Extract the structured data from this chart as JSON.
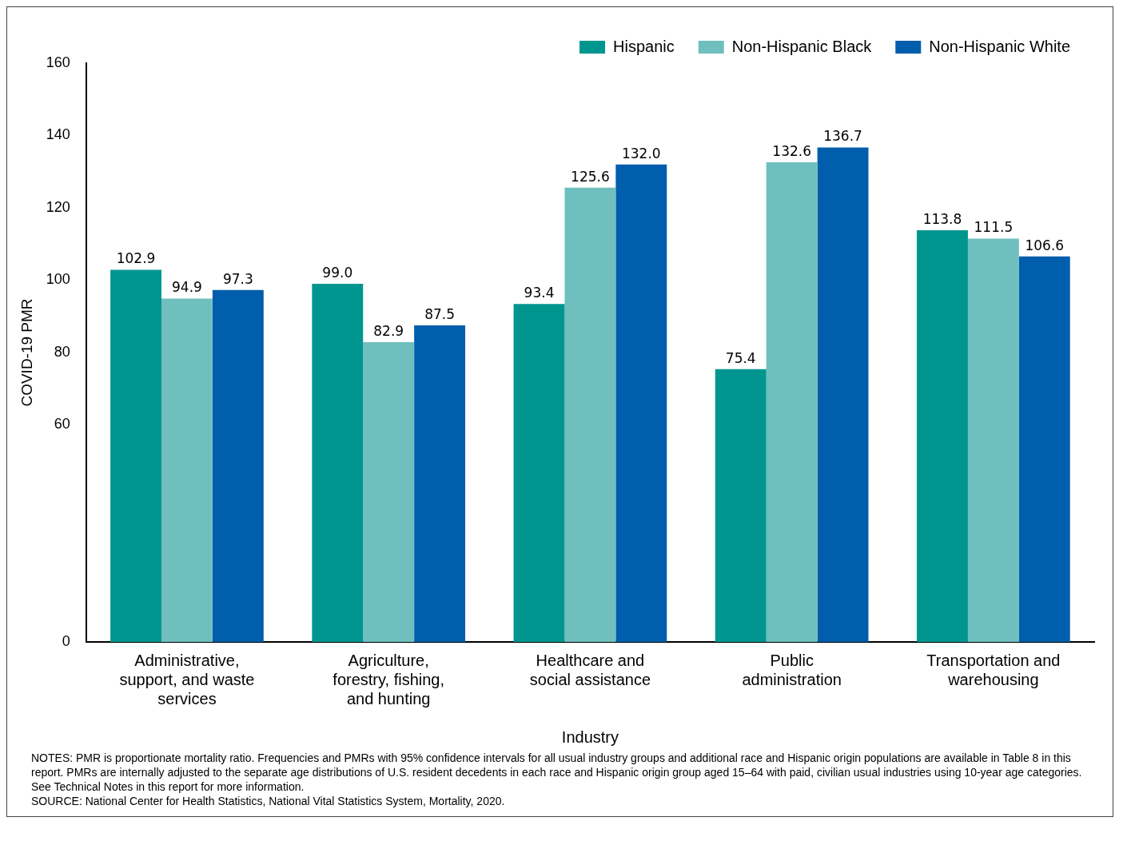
{
  "chart_data": {
    "type": "bar",
    "xlabel": "Industry",
    "ylabel": "COVID-19 PMR",
    "categories": [
      "Administrative, support, and waste services",
      "Agriculture, forestry, fishing, and hunting",
      "Healthcare and social assistance",
      "Public administration",
      "Transportation and warehousing"
    ],
    "series": [
      {
        "name": "Hispanic",
        "color": "#00968f",
        "values": [
          102.9,
          99.0,
          93.4,
          75.4,
          113.8
        ],
        "value_labels": [
          "102.9",
          "99.0",
          "93.4",
          "75.4",
          "113.8"
        ]
      },
      {
        "name": "Non-Hispanic Black",
        "color": "#70bfbf",
        "values": [
          94.9,
          82.9,
          125.6,
          132.6,
          111.5
        ],
        "value_labels": [
          "94.9",
          "82.9",
          "125.6",
          "132.6",
          "111.5"
        ]
      },
      {
        "name": "Non-Hispanic White",
        "color": "#005eac",
        "values": [
          97.3,
          87.5,
          132.0,
          136.7,
          106.6
        ],
        "value_labels": [
          "97.3",
          "87.5",
          "132.0",
          "136.7",
          "106.6"
        ]
      }
    ],
    "ylim": [
      0,
      160
    ],
    "yticks": [
      0,
      60,
      80,
      100,
      120,
      140,
      160
    ],
    "grid": false,
    "legend": "top right",
    "annotations": [
      "NOTES: PMR is proportionate mortality ratio. Frequencies and PMRs with 95% confidence intervals for all usual industry groups and additional race and Hispanic origin populations are available in Table 8 in this report. PMRs are internally adjusted to the separate age distributions of U.S. resident decedents in each race and Hispanic origin group aged 15–64 with paid, civilian usual industries using 10-year age categories. See Technical Notes in this report for more information.",
      "SOURCE: National Center for Health Statistics, National Vital Statistics System, Mortality, 2020."
    ]
  }
}
